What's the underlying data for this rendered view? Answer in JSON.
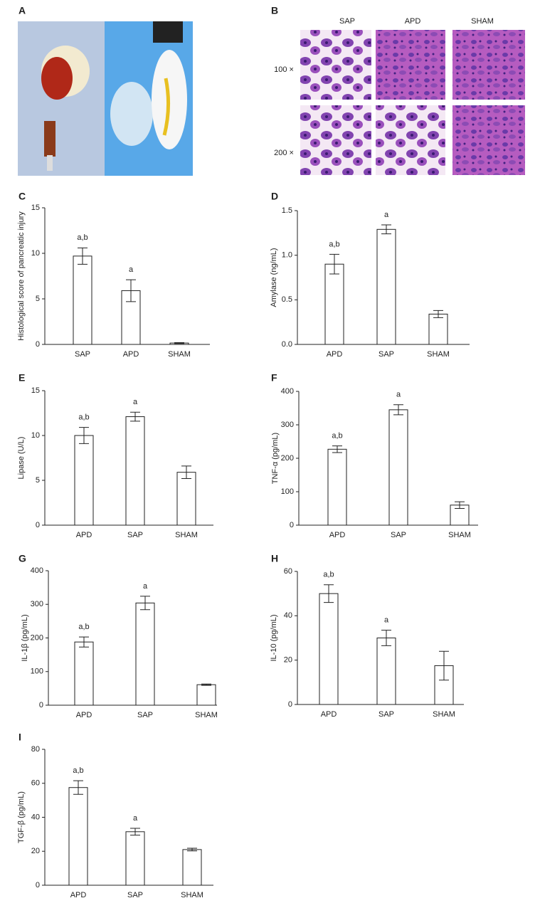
{
  "panels": {
    "a": {
      "label": "A"
    },
    "b": {
      "label": "B",
      "columns": [
        "SAP",
        "APD",
        "SHAM"
      ],
      "rows": [
        "100 ×",
        "200 ×"
      ]
    }
  },
  "chart_data": [
    {
      "type": "bar",
      "label": "C",
      "ylabel": "Histological score of pancreatic injury",
      "categories": [
        "SAP",
        "APD",
        "SHAM"
      ],
      "values": [
        9.7,
        5.9,
        0.15
      ],
      "errors": [
        0.9,
        1.2,
        0.05
      ],
      "annotations": [
        "a,b",
        "a",
        null
      ],
      "color": "#ffffff",
      "ylim": [
        0,
        15
      ],
      "yticks": [
        0,
        5,
        10,
        15
      ]
    },
    {
      "type": "bar",
      "label": "D",
      "ylabel": "Amylase (ng/mL)",
      "categories": [
        "APD",
        "SAP",
        "SHAM"
      ],
      "values": [
        0.9,
        1.29,
        0.34
      ],
      "errors": [
        0.11,
        0.05,
        0.04
      ],
      "annotations": [
        "a,b",
        "a",
        null
      ],
      "color": "#ffffff",
      "ylim": [
        0,
        1.5
      ],
      "yticks": [
        {
          "value": 0,
          "label": "0.0"
        },
        0.5,
        {
          "value": 1,
          "label": "1.0"
        },
        1.5
      ]
    },
    {
      "type": "bar",
      "label": "E",
      "ylabel": "Lipase (U/L)",
      "categories": [
        "APD",
        "SAP",
        "SHAM"
      ],
      "values": [
        10.0,
        12.1,
        5.9
      ],
      "errors": [
        0.9,
        0.5,
        0.7
      ],
      "annotations": [
        "a,b",
        "a",
        null
      ],
      "color": "#ffffff",
      "ylim": [
        0,
        15
      ],
      "yticks": [
        0,
        5,
        10,
        15
      ]
    },
    {
      "type": "bar",
      "label": "F",
      "ylabel": "TNF-α (pg/mL)",
      "categories": [
        "APD",
        "SAP",
        "SHAM"
      ],
      "values": [
        227,
        345,
        60
      ],
      "errors": [
        10,
        15,
        10
      ],
      "annotations": [
        "a,b",
        "a",
        null
      ],
      "color": "#ffffff",
      "ylim": [
        0,
        400
      ],
      "yticks": [
        0,
        100,
        200,
        300,
        400
      ]
    },
    {
      "type": "bar",
      "label": "G",
      "ylabel": "IL-1β (pg/mL)",
      "categories": [
        "APD",
        "SAP",
        "SHAM"
      ],
      "values": [
        188,
        304,
        61
      ],
      "errors": [
        15,
        20,
        2
      ],
      "annotations": [
        "a,b",
        "a",
        null
      ],
      "color": "#ffffff",
      "ylim": [
        0,
        400
      ],
      "yticks": [
        0,
        100,
        200,
        300,
        400
      ]
    },
    {
      "type": "bar",
      "label": "H",
      "ylabel": "IL-10 (pg/mL)",
      "categories": [
        "APD",
        "SAP",
        "SHAM"
      ],
      "values": [
        50,
        30,
        17.5
      ],
      "errors": [
        4,
        3.5,
        6.5
      ],
      "annotations": [
        "a,b",
        "a",
        null
      ],
      "color": "#ffffff",
      "ylim": [
        0,
        60
      ],
      "yticks": [
        0,
        20,
        40,
        60
      ]
    },
    {
      "type": "bar",
      "label": "I",
      "ylabel": "TGF-β (pg/mL)",
      "categories": [
        "APD",
        "SAP",
        "SHAM"
      ],
      "values": [
        57.5,
        31.5,
        21
      ],
      "errors": [
        4,
        2,
        0.8
      ],
      "annotations": [
        "a,b",
        "a",
        null
      ],
      "color": "#ffffff",
      "ylim": [
        0,
        80
      ],
      "yticks": [
        0,
        20,
        40,
        60,
        80
      ]
    }
  ]
}
